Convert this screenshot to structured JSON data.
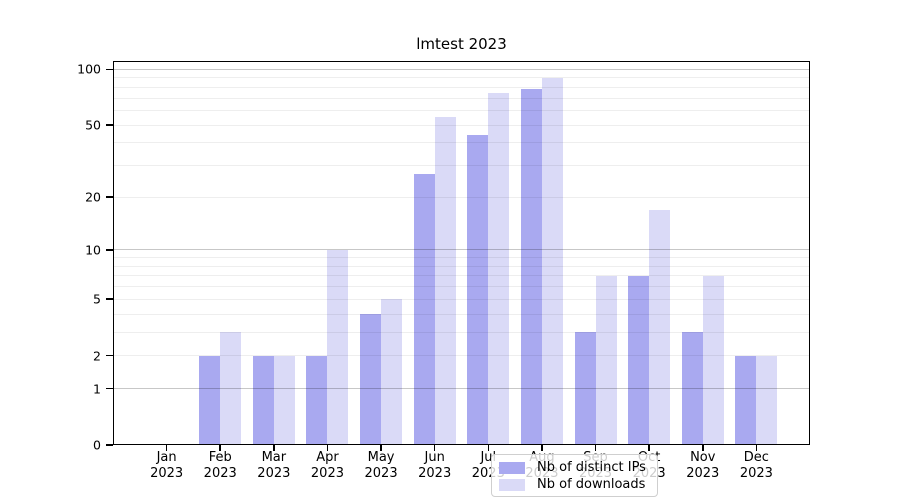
{
  "chart_data": {
    "type": "bar",
    "title": "lmtest 2023",
    "categories": [
      "Jan 2023",
      "Feb 2023",
      "Mar 2023",
      "Apr 2023",
      "May 2023",
      "Jun 2023",
      "Jul 2023",
      "Aug 2023",
      "Sep 2023",
      "Oct 2023",
      "Nov 2023",
      "Dec 2023"
    ],
    "series": [
      {
        "name": "Nb of distinct IPs",
        "key": "distinct-ips",
        "color": "#a9a9f0",
        "values": [
          0,
          2,
          2,
          2,
          4,
          27,
          44,
          78,
          3,
          7,
          3,
          2
        ]
      },
      {
        "name": "Nb of downloads",
        "key": "downloads",
        "color": "#dadaf7",
        "values": [
          0,
          3,
          2,
          10,
          5,
          55,
          75,
          90,
          7,
          17,
          7,
          2
        ]
      }
    ],
    "yscale": "symlog",
    "yticks": [
      0,
      1,
      2,
      5,
      10,
      20,
      50,
      100
    ],
    "major_gridlines": [
      1,
      10,
      100
    ],
    "minor_gridlines": [
      2,
      3,
      4,
      5,
      6,
      7,
      8,
      9,
      20,
      30,
      40,
      50,
      60,
      70,
      80,
      90
    ],
    "ylim": [
      0,
      111
    ],
    "xlabel": "",
    "ylabel": "",
    "grid": true,
    "legend_position": "lower center",
    "colors": {
      "background": "#ffffff",
      "axis": "#000000",
      "major_grid": "#c7c7c7",
      "minor_grid": "#ededed",
      "bar_dark": "#a9a9f0",
      "bar_light": "#dadaf7"
    }
  }
}
